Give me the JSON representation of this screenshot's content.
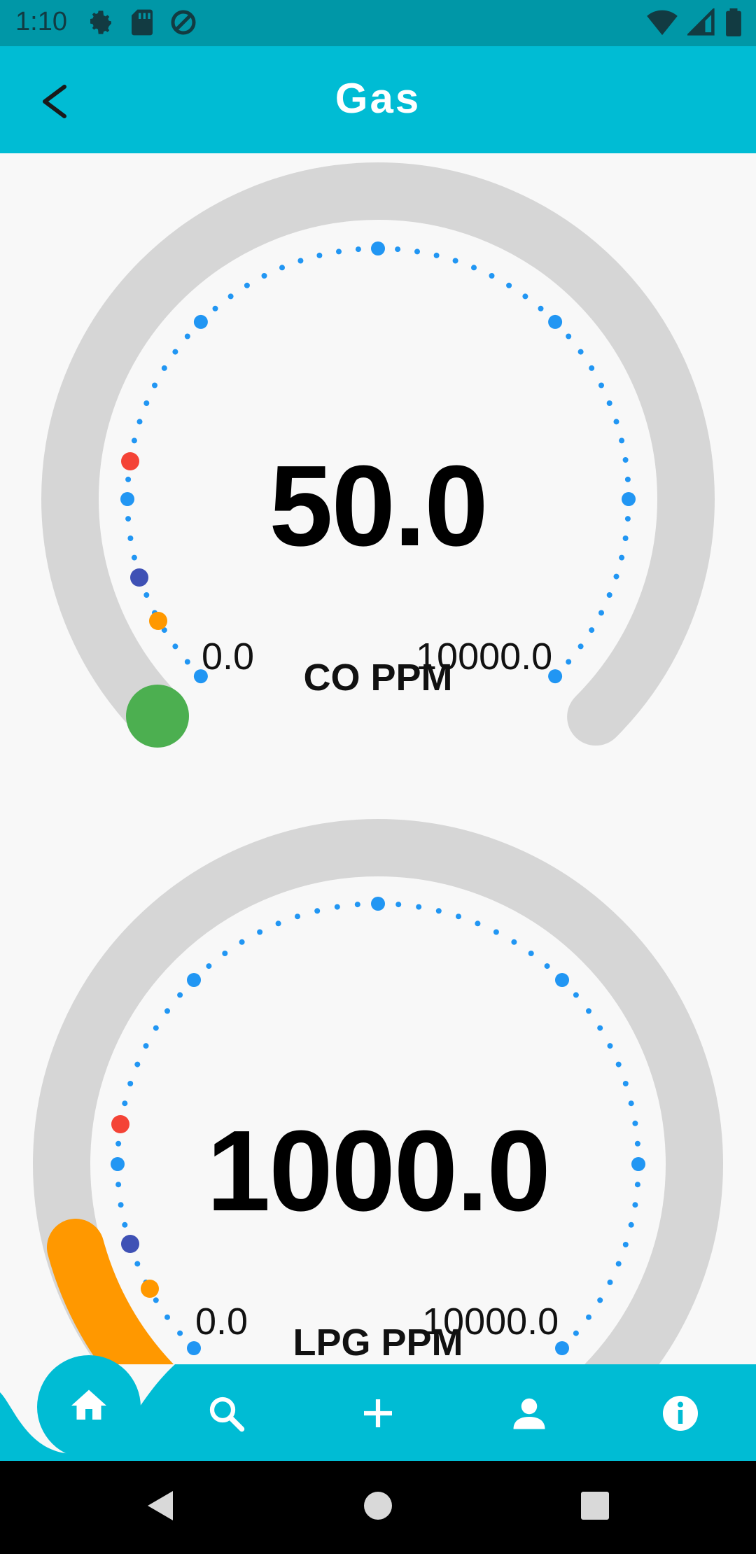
{
  "status_bar": {
    "time": "1:10",
    "left_icons": [
      "settings-icon",
      "sd-card-icon",
      "at-sign-icon"
    ],
    "right_icons": [
      "wifi-icon",
      "cell-signal-icon",
      "battery-icon"
    ]
  },
  "app_bar": {
    "title": "Gas",
    "back_icon": "chevron-left-icon"
  },
  "gauges": [
    {
      "value": "50.0",
      "min": "0.0",
      "max": "10000.0",
      "label": "CO PPM",
      "pointer_color": "#4caf50"
    },
    {
      "value": "1000.0",
      "min": "0.0",
      "max": "10000.0",
      "label": "LPG PPM",
      "pointer_color": "#ff9800"
    }
  ],
  "bottom_nav": {
    "items": [
      "home-icon",
      "search-icon",
      "add-icon",
      "person-icon",
      "info-icon"
    ],
    "active": "home"
  },
  "colors": {
    "app_bar": "#00bcd4",
    "status_bar": "#0097a7",
    "track": "#d6d6d6",
    "dots": "#2196f3",
    "marker_red": "#f44336",
    "marker_indigo": "#3f51b5",
    "marker_orange": "#ff9800"
  }
}
